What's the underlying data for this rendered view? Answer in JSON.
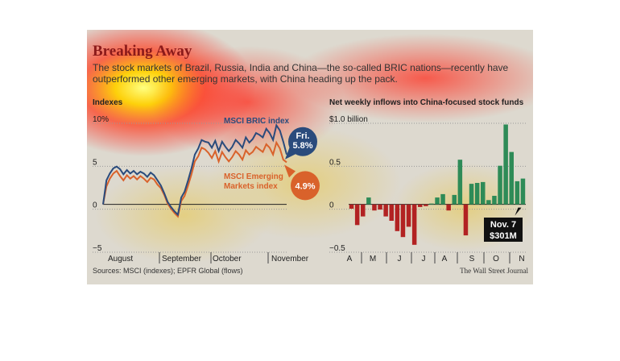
{
  "title": "Breaking Away",
  "subtitle": "The stock markets of Brazil, Russia, India and China—the so-called BRIC nations—recently have outperformed other emerging markets, with China heading up the pack.",
  "sources": "Sources: MSCI (indexes); EPFR Global (flows)",
  "credit": "The Wall Street Journal",
  "colors": {
    "bric": "#2a4b7c",
    "em": "#d9622b",
    "inflow": "#2e8b57",
    "outflow": "#b22222"
  },
  "chart_data": [
    {
      "type": "line",
      "title": "Indexes",
      "x_ticks": [
        "August",
        "September",
        "October",
        "November"
      ],
      "y_ticks": [
        "10%",
        "5",
        "0",
        "−5"
      ],
      "ylim": [
        -5,
        10
      ],
      "unit": "%",
      "series": [
        {
          "name": "MSCI BRIC index",
          "end_label": "Fri.",
          "end_value": "5.8%",
          "values": [
            0,
            2.8,
            3.6,
            4.2,
            4.4,
            4.1,
            3.5,
            4,
            3.6,
            3.9,
            3.5,
            3.8,
            3.6,
            3.2,
            3.7,
            3.4,
            2.8,
            2.2,
            1.3,
            0.3,
            -0.3,
            -0.8,
            -1.2,
            0.8,
            1.5,
            2.8,
            4.2,
            5.8,
            6.5,
            7.5,
            7.3,
            7.2,
            6.6,
            7.4,
            6.2,
            7.3,
            6.7,
            6.2,
            6.7,
            7.5,
            7.1,
            6.6,
            7.8,
            7.2,
            7.6,
            8.3,
            8.1,
            7.8,
            8.8,
            8.3,
            7.5,
            9.2,
            8.6,
            7.3,
            5.8
          ]
        },
        {
          "name": "MSCI Emerging Markets index",
          "end_label": "",
          "end_value": "4.9%",
          "values": [
            0,
            2.1,
            3,
            3.6,
            3.9,
            3.3,
            2.8,
            3.4,
            3,
            3.3,
            2.9,
            3.3,
            3,
            2.6,
            3.1,
            2.9,
            2.3,
            1.9,
            1.1,
            0.1,
            -0.5,
            -1,
            -1.4,
            0.4,
            1,
            2.2,
            3.5,
            5,
            5.6,
            6.6,
            6.4,
            6,
            5.4,
            6.2,
            5,
            6.1,
            5.5,
            5,
            5.5,
            6.2,
            5.8,
            5.2,
            6.3,
            5.8,
            6.1,
            6.7,
            6.4,
            6.1,
            7,
            6.6,
            5.8,
            7.2,
            6.5,
            5.2,
            4.9
          ]
        }
      ]
    },
    {
      "type": "bar",
      "title": "Net weekly inflows into China-focused stock funds",
      "x_ticks": [
        "A",
        "M",
        "J",
        "J",
        "A",
        "S",
        "O",
        "N"
      ],
      "y_ticks": [
        "$1.0 billion",
        "0.5",
        "0",
        "−0.5"
      ],
      "ylim": [
        -0.5,
        1.0
      ],
      "unit": "$ billion",
      "values": [
        -0.05,
        -0.24,
        -0.14,
        0.08,
        -0.07,
        -0.06,
        -0.14,
        -0.19,
        -0.31,
        -0.38,
        -0.26,
        -0.47,
        -0.03,
        -0.02,
        0.01,
        0.08,
        0.12,
        -0.07,
        0.11,
        0.52,
        -0.36,
        0.24,
        0.25,
        0.26,
        0.05,
        0.1,
        0.45,
        0.93,
        0.61,
        0.27,
        0.301
      ],
      "annotation": {
        "label": "Nov. 7",
        "value": "$301M"
      }
    }
  ]
}
